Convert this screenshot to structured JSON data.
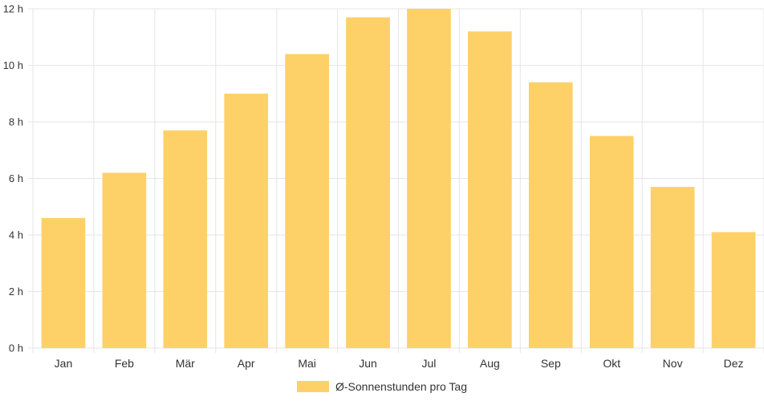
{
  "chart_data": {
    "type": "bar",
    "categories": [
      "Jan",
      "Feb",
      "Mär",
      "Apr",
      "Mai",
      "Jun",
      "Jul",
      "Aug",
      "Sep",
      "Okt",
      "Nov",
      "Dez"
    ],
    "series": [
      {
        "name": "Ø-Sonnenstunden pro Tag",
        "values": [
          4.6,
          6.2,
          7.7,
          9.0,
          10.4,
          11.7,
          12.0,
          11.2,
          9.4,
          7.5,
          5.7,
          4.1
        ]
      }
    ],
    "y_ticks": [
      "0 h",
      "2 h",
      "4 h",
      "6 h",
      "8 h",
      "10 h",
      "12 h"
    ],
    "ylim": [
      0,
      12
    ],
    "grid": true,
    "legend_position": "bottom",
    "colors": {
      "bar": "#fdd068",
      "grid": "#e6e6e6",
      "text": "#333333"
    }
  }
}
